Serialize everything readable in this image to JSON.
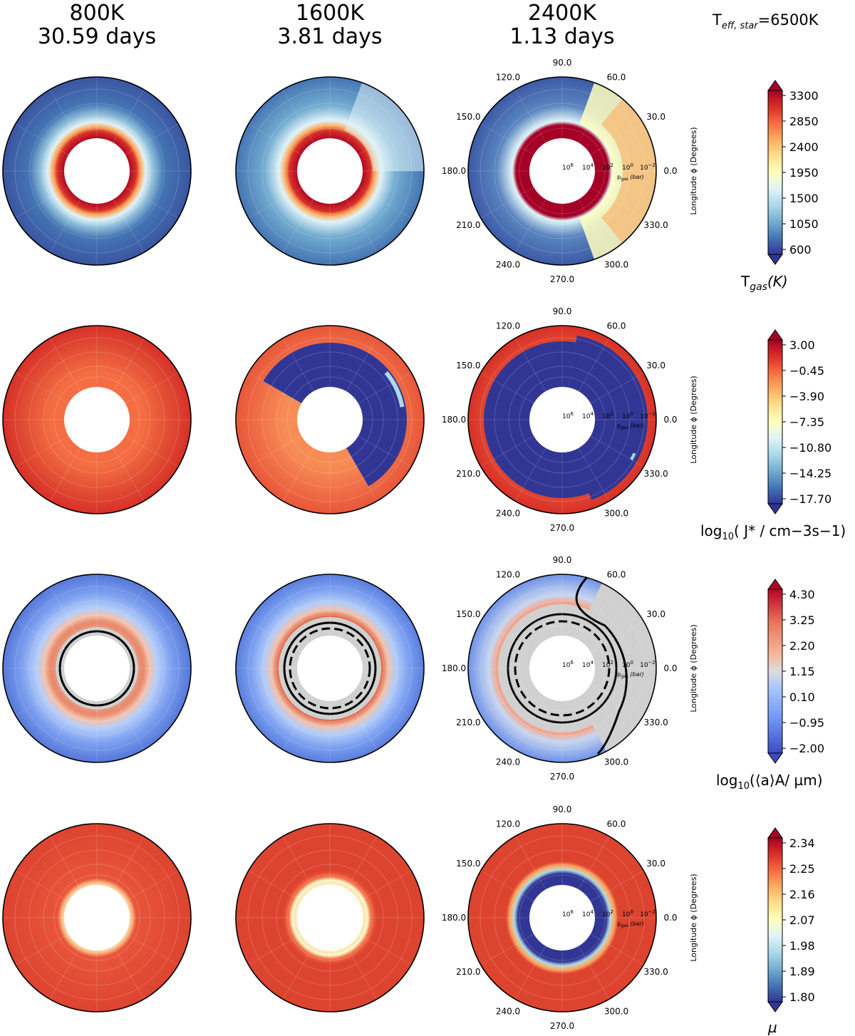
{
  "column_titles": [
    {
      "temp": "800K",
      "period": "30.59 days"
    },
    {
      "temp": "1600K",
      "period": "3.81 days"
    },
    {
      "temp": "2400K",
      "period": "1.13 days"
    }
  ],
  "star_label": {
    "prefix": "T",
    "sub": "eff, star",
    "value": "=6500K"
  },
  "colors": {
    "dark_blue": "#313695",
    "blue": "#4575b4",
    "light_blue": "#abd9e9",
    "pale_yellow": "#ffffbf",
    "orange": "#fdae61",
    "red_orange": "#f46d43",
    "red": "#d73027",
    "dark_red": "#a50026",
    "grey": "#d0d0d0"
  },
  "chart_data": {
    "type": "polar-contour-grid",
    "angular_axis": {
      "label": "Longitude ϕ (Degrees)",
      "ticks": [
        "0.0",
        "30.0",
        "60.0",
        "90.0",
        "120.0",
        "150.0",
        "180.0",
        "210.0",
        "240.0",
        "270.0",
        "300.0",
        "330.0"
      ]
    },
    "radial_axis": {
      "label": "p_gas (bar)",
      "ticks": [
        "10^6",
        "10^4",
        "10^2",
        "10^0",
        "10^-2"
      ]
    },
    "rows": [
      {
        "quantity": "T_gas (K)",
        "colorbar": {
          "label": "Tgas(K)",
          "label_main": "T",
          "label_sub": "gas",
          "label_rest": "(K)",
          "ticks": [
            "3300",
            "2850",
            "2400",
            "1950",
            "1500",
            "1050",
            "600"
          ],
          "min": 600,
          "max": 3300,
          "cmap": "RdYlBu_r"
        }
      },
      {
        "quantity": "log10(J* / cm^-3 s^-1)",
        "colorbar": {
          "label": "log10( J* / cm−3s−1)",
          "label_main": "log",
          "label_sub": "10",
          "label_rest": "( J* / cm−3s−1)",
          "ticks": [
            "3.00",
            "−0.45",
            "−3.90",
            "−7.35",
            "−10.80",
            "−14.25",
            "−17.70"
          ],
          "min": -17.7,
          "max": 3.0,
          "cmap": "RdYlBu_r"
        }
      },
      {
        "quantity": "log10(<a>_A / µm)",
        "colorbar": {
          "label": "log10(⟨a⟩A/ µm)",
          "label_main": "log",
          "label_sub": "10",
          "label_rest": "(⟨a⟩A/ µm)",
          "ticks": [
            "4.30",
            "3.25",
            "2.20",
            "1.15",
            "0.10",
            "−0.95",
            "−2.00"
          ],
          "min": -2.0,
          "max": 4.3,
          "cmap": "coolwarm"
        }
      },
      {
        "quantity": "µ",
        "colorbar": {
          "label": "µ",
          "label_main": "µ",
          "label_sub": "",
          "label_rest": "",
          "ticks": [
            "2.34",
            "2.25",
            "2.16",
            "2.07",
            "1.98",
            "1.89",
            "1.80"
          ],
          "min": 1.8,
          "max": 2.34,
          "cmap": "RdYlBu_r"
        }
      }
    ]
  }
}
